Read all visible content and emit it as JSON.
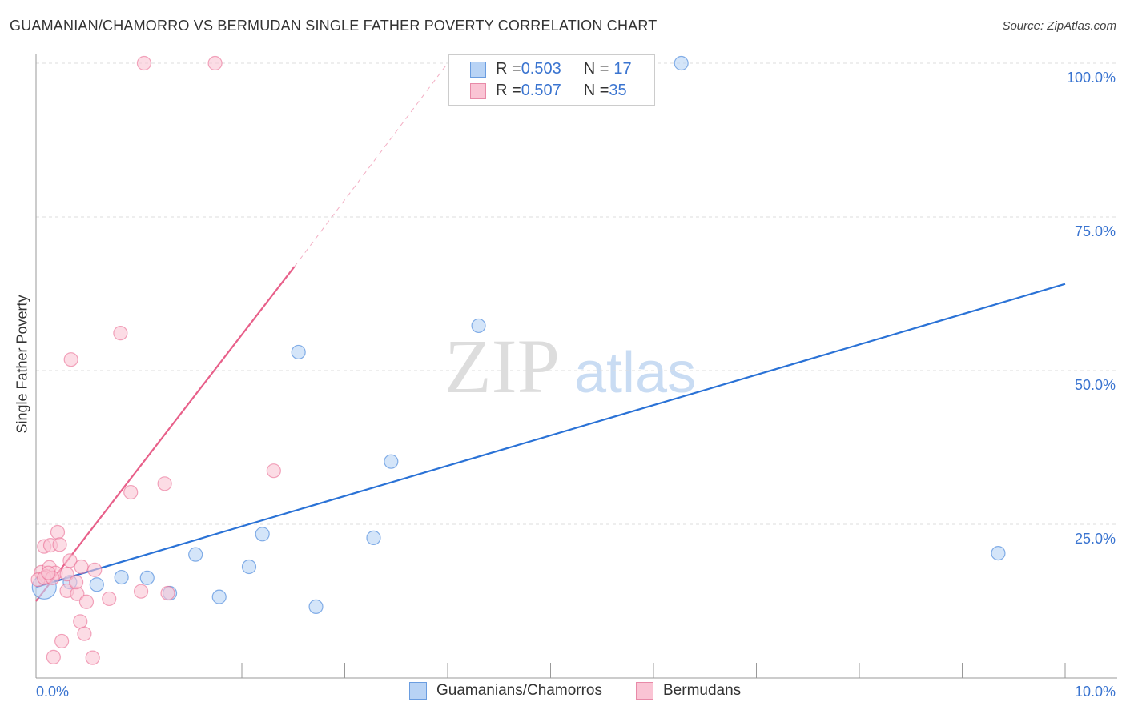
{
  "title": "GUAMANIAN/CHAMORRO VS BERMUDAN SINGLE FATHER POVERTY CORRELATION CHART",
  "source": "Source: ZipAtlas.com",
  "watermark": {
    "zip": "ZIP",
    "atlas": "atlas"
  },
  "legend": {
    "rows": [
      {
        "r_label": "R = ",
        "r": "0.503",
        "n_label": "N = ",
        "n": "17",
        "color": "#b8d3f5",
        "border": "#6a9de0"
      },
      {
        "r_label": "R = ",
        "r": "0.507",
        "n_label": "N = ",
        "n": "35",
        "color": "#fac4d4",
        "border": "#e88aa8"
      }
    ]
  },
  "chart_data": {
    "type": "scatter",
    "title": "GUAMANIAN/CHAMORRO VS BERMUDAN SINGLE FATHER POVERTY CORRELATION CHART",
    "xlabel": "",
    "ylabel": "Single Father Poverty",
    "xlim": [
      0,
      10
    ],
    "ylim": [
      0,
      100
    ],
    "x_tick_labels": [
      "0.0%",
      "10.0%"
    ],
    "y_tick_labels": [
      {
        "v": 100,
        "label": "100.0%"
      },
      {
        "v": 75,
        "label": "75.0%"
      },
      {
        "v": 50,
        "label": "50.0%"
      },
      {
        "v": 25,
        "label": "25.0%"
      }
    ],
    "grid": true,
    "legend_placement": "bottom-center",
    "series": [
      {
        "name": "Guamanians/Chamorros",
        "color": "#2a72d6",
        "fill": "#b8d3f5",
        "points": [
          [
            0.08,
            14.8
          ],
          [
            0.33,
            15.6
          ],
          [
            0.59,
            15.2
          ],
          [
            0.83,
            16.4
          ],
          [
            1.08,
            16.3
          ],
          [
            1.3,
            13.8
          ],
          [
            1.55,
            20.1
          ],
          [
            1.78,
            13.2
          ],
          [
            2.07,
            18.1
          ],
          [
            2.2,
            23.4
          ],
          [
            2.55,
            53.0
          ],
          [
            2.72,
            11.6
          ],
          [
            3.28,
            22.8
          ],
          [
            3.45,
            35.2
          ],
          [
            4.3,
            57.3
          ],
          [
            6.27,
            100
          ],
          [
            9.35,
            20.3
          ]
        ],
        "trend": {
          "x": [
            0,
            10
          ],
          "y": [
            14.8,
            64.1
          ]
        }
      },
      {
        "name": "Bermudans",
        "color": "#e8608a",
        "fill": "#fac4d4",
        "points": [
          [
            0.21,
            23.7
          ],
          [
            0.08,
            21.4
          ],
          [
            0.14,
            21.6
          ],
          [
            0.23,
            21.7
          ],
          [
            0.05,
            17.2
          ],
          [
            0.13,
            18.0
          ],
          [
            0.19,
            17.1
          ],
          [
            0.1,
            16.5
          ],
          [
            0.33,
            19.1
          ],
          [
            0.44,
            18.1
          ],
          [
            0.57,
            17.6
          ],
          [
            0.3,
            16.9
          ],
          [
            0.02,
            16.0
          ],
          [
            0.3,
            14.2
          ],
          [
            0.4,
            13.7
          ],
          [
            0.49,
            12.4
          ],
          [
            0.43,
            9.2
          ],
          [
            0.47,
            7.2
          ],
          [
            0.25,
            6.0
          ],
          [
            0.17,
            3.4
          ],
          [
            0.55,
            3.3
          ],
          [
            0.71,
            12.9
          ],
          [
            1.02,
            14.1
          ],
          [
            1.28,
            13.8
          ],
          [
            0.92,
            30.2
          ],
          [
            1.25,
            31.6
          ],
          [
            2.31,
            33.7
          ],
          [
            0.34,
            51.8
          ],
          [
            0.82,
            56.1
          ],
          [
            1.05,
            100
          ],
          [
            1.74,
            100
          ],
          [
            0.08,
            16.3
          ],
          [
            0.16,
            16.3
          ],
          [
            0.39,
            15.6
          ],
          [
            0.12,
            17.1
          ]
        ],
        "trend": {
          "x": [
            0,
            2.51
          ],
          "y": [
            12.5,
            66.9
          ]
        },
        "trend_extension": {
          "x": [
            2.51,
            4.0
          ],
          "y": [
            66.9,
            100
          ]
        }
      }
    ]
  }
}
